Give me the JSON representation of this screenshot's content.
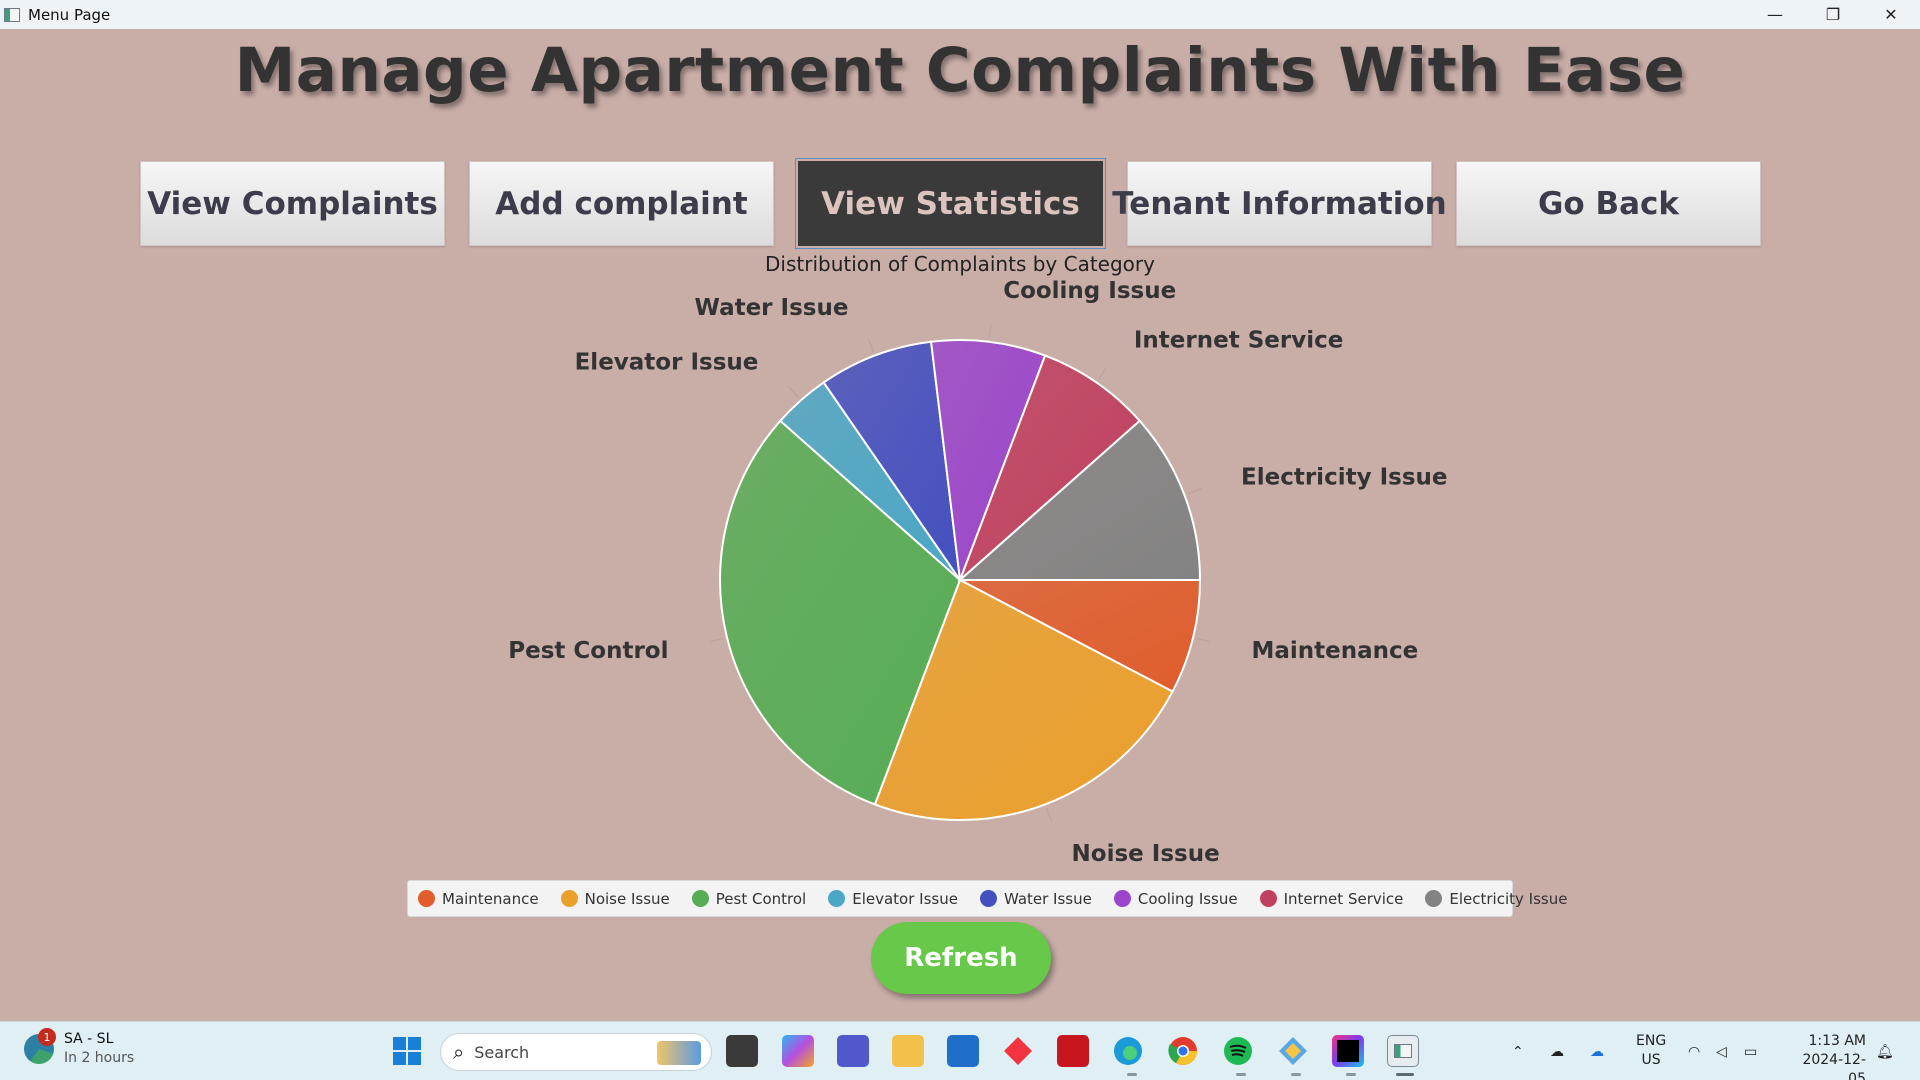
{
  "window": {
    "title": "Menu Page",
    "controls": [
      "—",
      "❐",
      "✕"
    ]
  },
  "headline": "Manage Apartment Complaints With Ease",
  "nav": [
    {
      "label": "View Complaints",
      "active": false
    },
    {
      "label": "Add complaint",
      "active": false
    },
    {
      "label": "View Statistics",
      "active": true
    },
    {
      "label": "Tenant Information",
      "active": false
    },
    {
      "label": "Go Back",
      "active": false
    }
  ],
  "chart_data": {
    "type": "pie",
    "title": "Distribution of Complaints by Category",
    "series": [
      {
        "name": "Maintenance",
        "value": 3,
        "color": "#e05d2c"
      },
      {
        "name": "Noise Issue",
        "value": 9,
        "color": "#eba02c"
      },
      {
        "name": "Pest Control",
        "value": 12,
        "color": "#56ad55"
      },
      {
        "name": "Elevator Issue",
        "value": 1.5,
        "color": "#4aa7c6"
      },
      {
        "name": "Water Issue",
        "value": 3,
        "color": "#4450c0"
      },
      {
        "name": "Cooling Issue",
        "value": 3,
        "color": "#9a45cc"
      },
      {
        "name": "Internet Service",
        "value": 3,
        "color": "#c0405f"
      },
      {
        "name": "Electricity Issue",
        "value": 4.5,
        "color": "#838383"
      }
    ],
    "legend_position": "bottom"
  },
  "refresh_label": "Refresh",
  "taskbar": {
    "weather_title": "SA - SL",
    "weather_sub": "In 2 hours",
    "notification_count": "1",
    "search_label": "Search",
    "lang_top": "ENG",
    "lang_bottom": "US",
    "time": "1:13 AM",
    "date": "2024-12-05"
  }
}
